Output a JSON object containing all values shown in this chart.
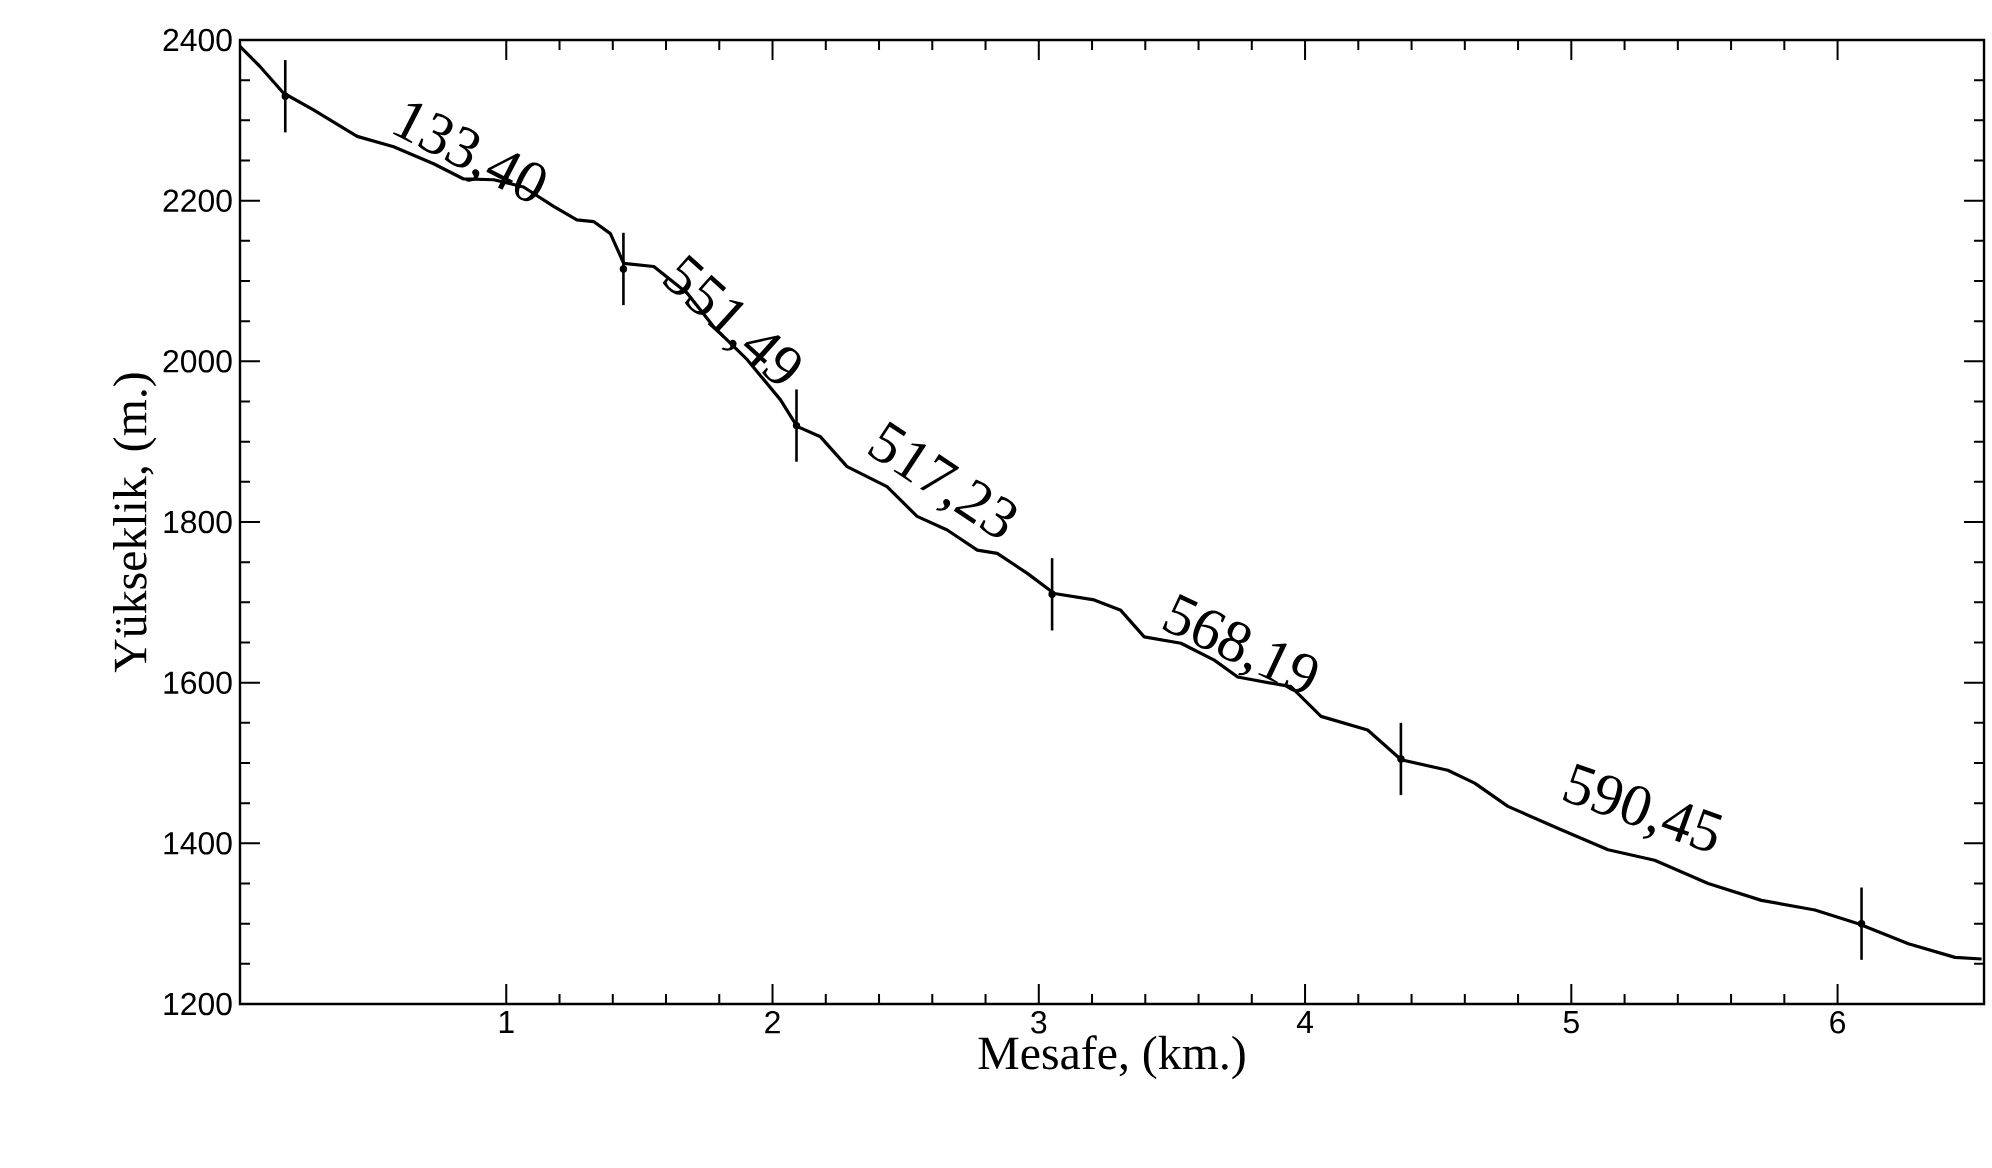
{
  "chart_data": {
    "type": "line",
    "xlabel": "Mesafe, (km.)",
    "ylabel": "Yükseklik, (m.)",
    "xlim": [
      0,
      6.55
    ],
    "ylim": [
      1200,
      2400
    ],
    "xticks": [
      1,
      2,
      3,
      4,
      5,
      6
    ],
    "yticks": [
      1200,
      1400,
      1600,
      1800,
      2000,
      2200,
      2400
    ],
    "series": [
      {
        "color": "#000000",
        "x": [
          0,
          0.075,
          0.163,
          0.276,
          0.44,
          0.577,
          0.727,
          0.84,
          0.953,
          1.065,
          1.178,
          1.265,
          1.328,
          1.391,
          1.441,
          1.554,
          1.679,
          1.779,
          1.905,
          2.03,
          2.092,
          2.18,
          2.28,
          2.43,
          2.543,
          2.656,
          2.769,
          2.844,
          2.957,
          3.058,
          3.208,
          3.308,
          3.396,
          3.534,
          3.659,
          3.747,
          3.947,
          4.06,
          4.235,
          4.361,
          4.536,
          4.637,
          4.762,
          4.962,
          5.138,
          5.313,
          5.514,
          5.714,
          5.915,
          6.078,
          6.266,
          6.441,
          6.541
        ],
        "values": [
          2392,
          2367,
          2334,
          2313,
          2280,
          2267,
          2246,
          2227,
          2226,
          2217,
          2193,
          2176,
          2174,
          2159,
          2122,
          2118,
          2085,
          2043,
          2002,
          1952,
          1919,
          1906,
          1869,
          1844,
          1807,
          1790,
          1765,
          1761,
          1736,
          1711,
          1703,
          1690,
          1657,
          1649,
          1628,
          1607,
          1595,
          1558,
          1541,
          1504,
          1491,
          1475,
          1446,
          1417,
          1392,
          1379,
          1350,
          1329,
          1317,
          1300,
          1275,
          1258,
          1256
        ]
      },
      {
        "type": "scatter",
        "color": "#000000",
        "x": [
          0.17,
          1.44,
          2.09,
          3.05,
          4.36,
          6.09
        ],
        "values": [
          2330,
          2115,
          1920,
          1710,
          1505,
          1300
        ],
        "errors": [
          45,
          45,
          45,
          45,
          45,
          45
        ]
      }
    ],
    "annotations": [
      "133,40",
      "551,49",
      "517,23",
      "568,19",
      "590,45"
    ]
  }
}
